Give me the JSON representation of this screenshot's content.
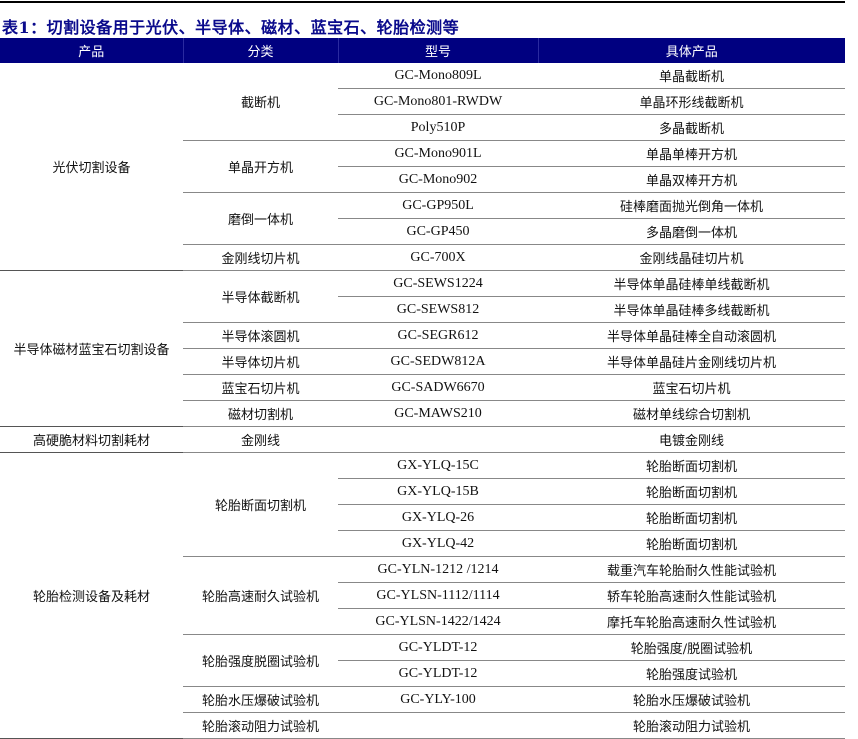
{
  "title": "表1：切割设备用于光伏、半导体、磁材、蓝宝石、轮胎检测等",
  "header": [
    "产品",
    "分类",
    "型号",
    "具体产品"
  ],
  "colors": {
    "header_bg": "#000080",
    "title": "#0a0a8c"
  },
  "groups": [
    {
      "product": "光伏切割设备",
      "categories": [
        {
          "name": "截断机",
          "items": [
            [
              "GC-Mono809L",
              "单晶截断机"
            ],
            [
              "GC-Mono801-RWDW",
              "单晶环形线截断机"
            ],
            [
              "Poly510P",
              "多晶截断机"
            ]
          ]
        },
        {
          "name": "单晶开方机",
          "items": [
            [
              "GC-Mono901L",
              "单晶单棒开方机"
            ],
            [
              "GC-Mono902",
              "单晶双棒开方机"
            ]
          ]
        },
        {
          "name": "磨倒一体机",
          "items": [
            [
              "GC-GP950L",
              "硅棒磨面抛光倒角一体机"
            ],
            [
              "GC-GP450",
              "多晶磨倒一体机"
            ]
          ]
        },
        {
          "name": "金刚线切片机",
          "items": [
            [
              "GC-700X",
              "金刚线晶硅切片机"
            ]
          ]
        }
      ]
    },
    {
      "product": "半导体磁材蓝宝石切割设备",
      "categories": [
        {
          "name": "半导体截断机",
          "items": [
            [
              "GC-SEWS1224",
              "半导体单晶硅棒单线截断机"
            ],
            [
              "GC-SEWS812",
              "半导体单晶硅棒多线截断机"
            ]
          ]
        },
        {
          "name": "半导体滚圆机",
          "items": [
            [
              "GC-SEGR612",
              "半导体单晶硅棒全自动滚圆机"
            ]
          ]
        },
        {
          "name": "半导体切片机",
          "items": [
            [
              "GC-SEDW812A",
              "半导体单晶硅片金刚线切片机"
            ]
          ]
        },
        {
          "name": "蓝宝石切片机",
          "items": [
            [
              "GC-SADW6670",
              "蓝宝石切片机"
            ]
          ]
        },
        {
          "name": "磁材切割机",
          "items": [
            [
              "GC-MAWS210",
              "磁材单线综合切割机"
            ]
          ]
        }
      ]
    },
    {
      "product": "高硬脆材料切割耗材",
      "categories": [
        {
          "name": "金刚线",
          "items": [
            [
              "",
              "电镀金刚线"
            ]
          ]
        }
      ]
    },
    {
      "product": "轮胎检测设备及耗材",
      "categories": [
        {
          "name": "轮胎断面切割机",
          "items": [
            [
              "GX-YLQ-15C",
              "轮胎断面切割机"
            ],
            [
              "GX-YLQ-15B",
              "轮胎断面切割机"
            ],
            [
              "GX-YLQ-26",
              "轮胎断面切割机"
            ],
            [
              "GX-YLQ-42",
              "轮胎断面切割机"
            ]
          ]
        },
        {
          "name": "轮胎高速耐久试验机",
          "items": [
            [
              "GC-YLN-1212 /1214",
              "载重汽车轮胎耐久性能试验机"
            ],
            [
              "GC-YLSN-1112/1114",
              "轿车轮胎高速耐久性能试验机"
            ],
            [
              "GC-YLSN-1422/1424",
              "摩托车轮胎高速耐久性试验机"
            ]
          ]
        },
        {
          "name": "轮胎强度脱圈试验机",
          "items": [
            [
              "GC-YLDT-12",
              "轮胎强度/脱圈试验机"
            ],
            [
              "GC-YLDT-12",
              "轮胎强度试验机"
            ]
          ]
        },
        {
          "name": "轮胎水压爆破试验机",
          "items": [
            [
              "GC-YLY-100",
              "轮胎水压爆破试验机"
            ]
          ]
        },
        {
          "name": "轮胎滚动阻力试验机",
          "items": [
            [
              "",
              "轮胎滚动阻力试验机"
            ]
          ]
        }
      ]
    }
  ]
}
